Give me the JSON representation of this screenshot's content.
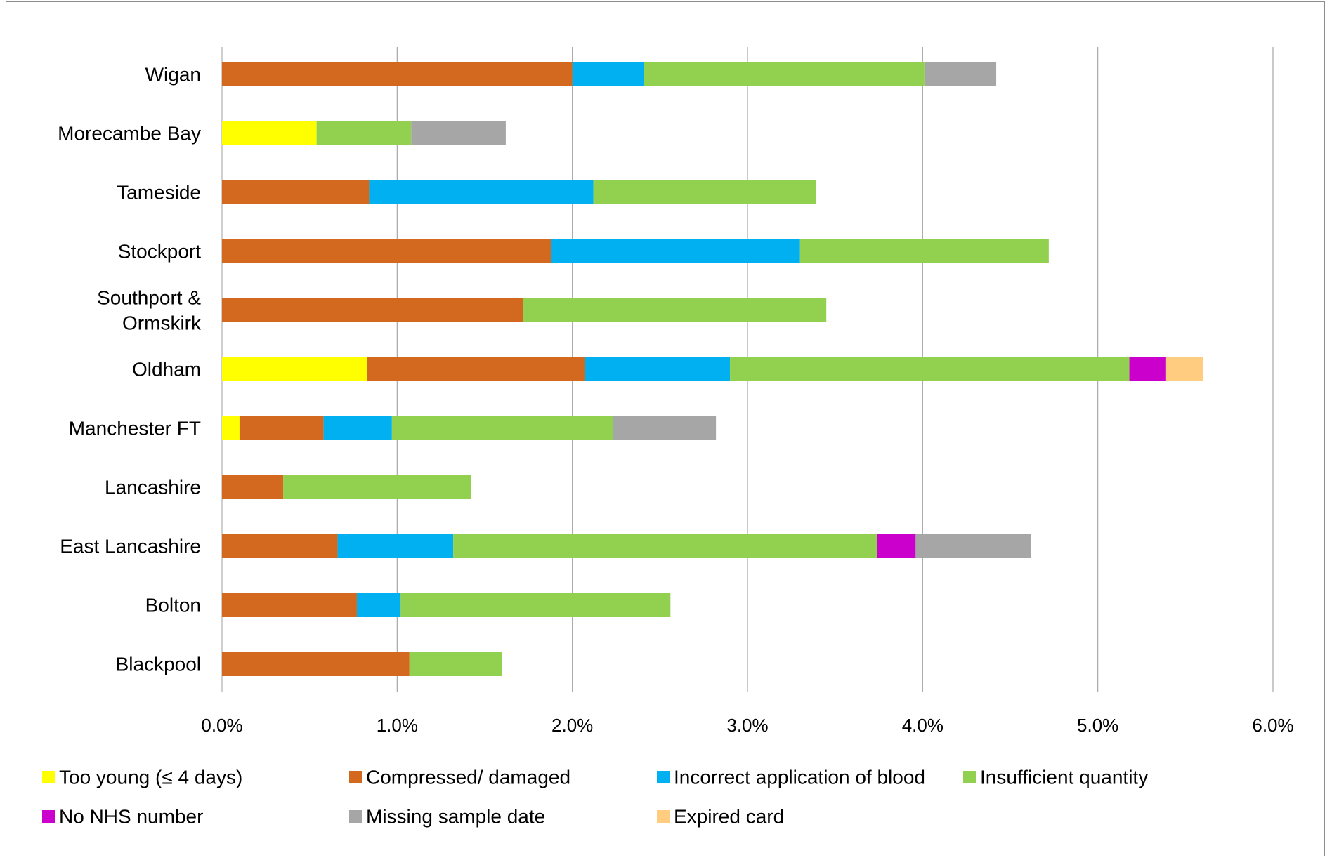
{
  "chart_data": {
    "type": "bar",
    "orientation": "horizontal",
    "stacked": true,
    "title": "",
    "xlabel": "",
    "ylabel": "",
    "xlim": [
      0,
      6
    ],
    "x_ticks": [
      "0.0%",
      "1.0%",
      "2.0%",
      "3.0%",
      "4.0%",
      "5.0%",
      "6.0%"
    ],
    "grid": "vertical",
    "legend_position": "bottom",
    "categories": [
      "Wigan",
      "Morecambe Bay",
      "Tameside",
      "Stockport",
      "Southport & Ormskirk",
      "Oldham",
      "Manchester FT",
      "Lancashire",
      "East Lancashire",
      "Bolton",
      "Blackpool"
    ],
    "category_lines": [
      [
        "Wigan"
      ],
      [
        "Morecambe Bay"
      ],
      [
        "Tameside"
      ],
      [
        "Stockport"
      ],
      [
        "Southport &",
        "Ormskirk"
      ],
      [
        "Oldham"
      ],
      [
        "Manchester FT"
      ],
      [
        "Lancashire"
      ],
      [
        "East Lancashire"
      ],
      [
        "Bolton"
      ],
      [
        "Blackpool"
      ]
    ],
    "series": [
      {
        "name": "Too young (≤ 4 days)",
        "color": "#FFFF00",
        "values": [
          0,
          0.54,
          0,
          0,
          0,
          0.83,
          0.1,
          0,
          0,
          0,
          0
        ]
      },
      {
        "name": "Compressed/ damaged",
        "color": "#D2691E",
        "values": [
          2.0,
          0,
          0.84,
          1.88,
          1.72,
          1.24,
          0.48,
          0.35,
          0.66,
          0.77,
          1.07
        ]
      },
      {
        "name": "Incorrect application of blood",
        "color": "#00B0F0",
        "values": [
          0.41,
          0,
          1.28,
          1.42,
          0,
          0.83,
          0.39,
          0,
          0.66,
          0.25,
          0
        ]
      },
      {
        "name": "Insufficient quantity",
        "color": "#92D050",
        "values": [
          1.6,
          0.54,
          1.27,
          1.42,
          1.73,
          2.28,
          1.26,
          1.07,
          2.42,
          1.54,
          0.53
        ]
      },
      {
        "name": "No NHS number",
        "color": "#CC00CC",
        "values": [
          0,
          0,
          0,
          0,
          0,
          0.21,
          0,
          0,
          0.22,
          0,
          0
        ]
      },
      {
        "name": "Missing sample date",
        "color": "#A6A6A6",
        "values": [
          0.41,
          0.54,
          0,
          0,
          0,
          0,
          0.59,
          0,
          0.66,
          0,
          0
        ]
      },
      {
        "name": "Expired  card",
        "color": "#FFCC80",
        "values": [
          0,
          0,
          0,
          0,
          0,
          0.21,
          0,
          0,
          0,
          0,
          0
        ]
      }
    ]
  }
}
